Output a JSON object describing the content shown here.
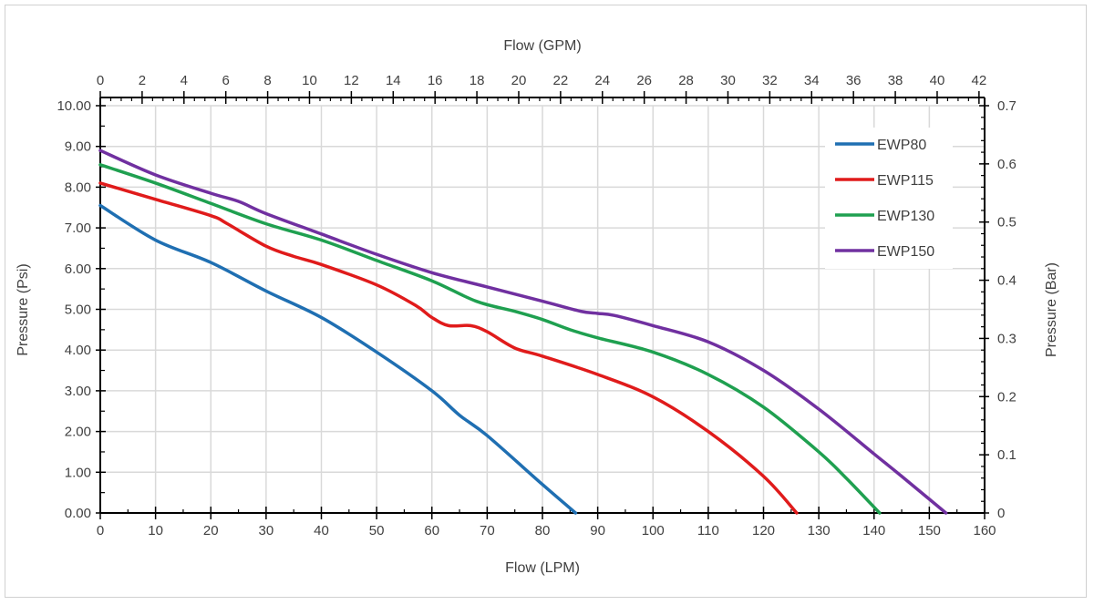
{
  "chart_data": {
    "type": "line",
    "title": "",
    "xlabel": "Flow (LPM)",
    "ylabel": "Pressure (Psi)",
    "x2label": "Flow (GPM)",
    "y2label": "Pressure (Bar)",
    "xlim": [
      0,
      160
    ],
    "ylim": [
      0,
      10
    ],
    "x2lim": [
      0,
      42
    ],
    "y2lim": [
      0,
      0.7
    ],
    "xticks": [
      0,
      10,
      20,
      30,
      40,
      50,
      60,
      70,
      80,
      90,
      100,
      110,
      120,
      130,
      140,
      150,
      160
    ],
    "yticks": [
      "0.00",
      "1.00",
      "2.00",
      "3.00",
      "4.00",
      "5.00",
      "6.00",
      "7.00",
      "8.00",
      "9.00",
      "10.00"
    ],
    "x2ticks": [
      0,
      2,
      4,
      6,
      8,
      10,
      12,
      14,
      16,
      18,
      20,
      22,
      24,
      26,
      28,
      30,
      32,
      34,
      36,
      38,
      40,
      42
    ],
    "y2ticks": [
      "0",
      "0.1",
      "0.2",
      "0.3",
      "0.4",
      "0.5",
      "0.6",
      "0.7"
    ],
    "grid": true,
    "legend": "top-right",
    "series": [
      {
        "name": "EWP80",
        "color": "#1f6fb2",
        "x": [
          0,
          10,
          20,
          30,
          40,
          50,
          60,
          65,
          70,
          80,
          86
        ],
        "y": [
          7.55,
          6.7,
          6.15,
          5.45,
          4.8,
          3.95,
          3.0,
          2.4,
          1.9,
          0.7,
          0
        ]
      },
      {
        "name": "EWP115",
        "color": "#e01b1b",
        "x": [
          0,
          10,
          20,
          23,
          30,
          35,
          40,
          50,
          57,
          60,
          63,
          67,
          70,
          75,
          80,
          90,
          100,
          110,
          120,
          126
        ],
        "y": [
          8.1,
          7.7,
          7.3,
          7.1,
          6.55,
          6.3,
          6.1,
          5.6,
          5.1,
          4.8,
          4.6,
          4.6,
          4.45,
          4.05,
          3.85,
          3.4,
          2.85,
          2.0,
          0.9,
          0
        ]
      },
      {
        "name": "EWP130",
        "color": "#1fa050",
        "x": [
          0,
          10,
          20,
          30,
          40,
          50,
          60,
          68,
          75,
          80,
          85,
          90,
          100,
          110,
          120,
          130,
          135,
          141
        ],
        "y": [
          8.55,
          8.1,
          7.6,
          7.1,
          6.7,
          6.2,
          5.7,
          5.2,
          4.95,
          4.75,
          4.5,
          4.3,
          3.95,
          3.4,
          2.6,
          1.5,
          0.85,
          0
        ]
      },
      {
        "name": "EWP150",
        "color": "#7030a0",
        "x": [
          0,
          10,
          20,
          25,
          30,
          40,
          50,
          60,
          70,
          80,
          87,
          90,
          93,
          100,
          110,
          120,
          130,
          140,
          145,
          153
        ],
        "y": [
          8.9,
          8.3,
          7.85,
          7.65,
          7.35,
          6.85,
          6.35,
          5.9,
          5.55,
          5.2,
          4.95,
          4.9,
          4.85,
          4.6,
          4.2,
          3.5,
          2.55,
          1.45,
          0.9,
          0
        ]
      }
    ]
  }
}
